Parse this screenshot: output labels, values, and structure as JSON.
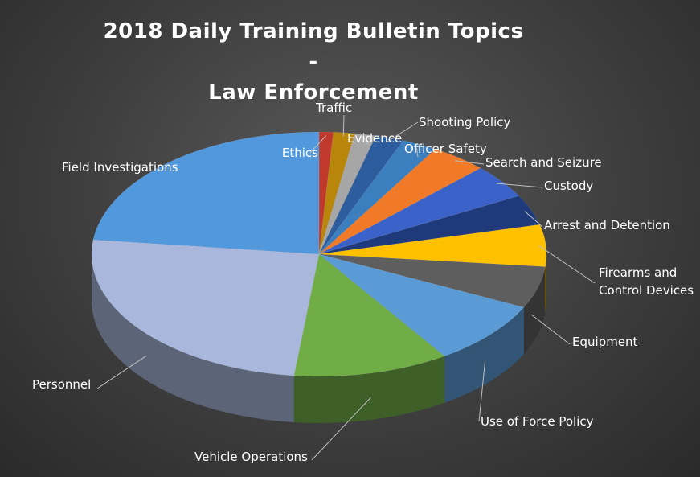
{
  "chart_data": {
    "type": "pie",
    "title": "2018 Daily Training Bulletin Topics -",
    "subtitle": "Law Enforcement",
    "slices": [
      {
        "label": "Ethics",
        "value": 1,
        "color": "#c0392b"
      },
      {
        "label": "Traffic",
        "value": 1.5,
        "color": "#b8860b"
      },
      {
        "label": "Evidence",
        "value": 1.5,
        "color": "#a6a6a6"
      },
      {
        "label": "Shooting Policy",
        "value": 2,
        "color": "#2e5d9e"
      },
      {
        "label": "Officer Safety",
        "value": 2.5,
        "color": "#3b7fbf"
      },
      {
        "label": "Search and Seizure",
        "value": 4,
        "color": "#f07a28"
      },
      {
        "label": "Custody",
        "value": 4.5,
        "color": "#3a62c8"
      },
      {
        "label": "Arrest and Detention",
        "value": 4,
        "color": "#1e3a7a"
      },
      {
        "label": "Firearms and Control Devices",
        "label_lines": [
          "Firearms and",
          "Control Devices"
        ],
        "value": 5.5,
        "color": "#ffc000"
      },
      {
        "label": "Equipment",
        "value": 5.5,
        "color": "#5e5e5e"
      },
      {
        "label": "Use of Force Policy",
        "value": 8.5,
        "color": "#5b9bd5"
      },
      {
        "label": "Vehicle Operations",
        "value": 11,
        "color": "#70ad47"
      },
      {
        "label": "Personnel",
        "value": 25,
        "color": "#a8b7db"
      },
      {
        "label": "Field Investigations",
        "value": 23,
        "color": "#5298dc"
      }
    ]
  }
}
